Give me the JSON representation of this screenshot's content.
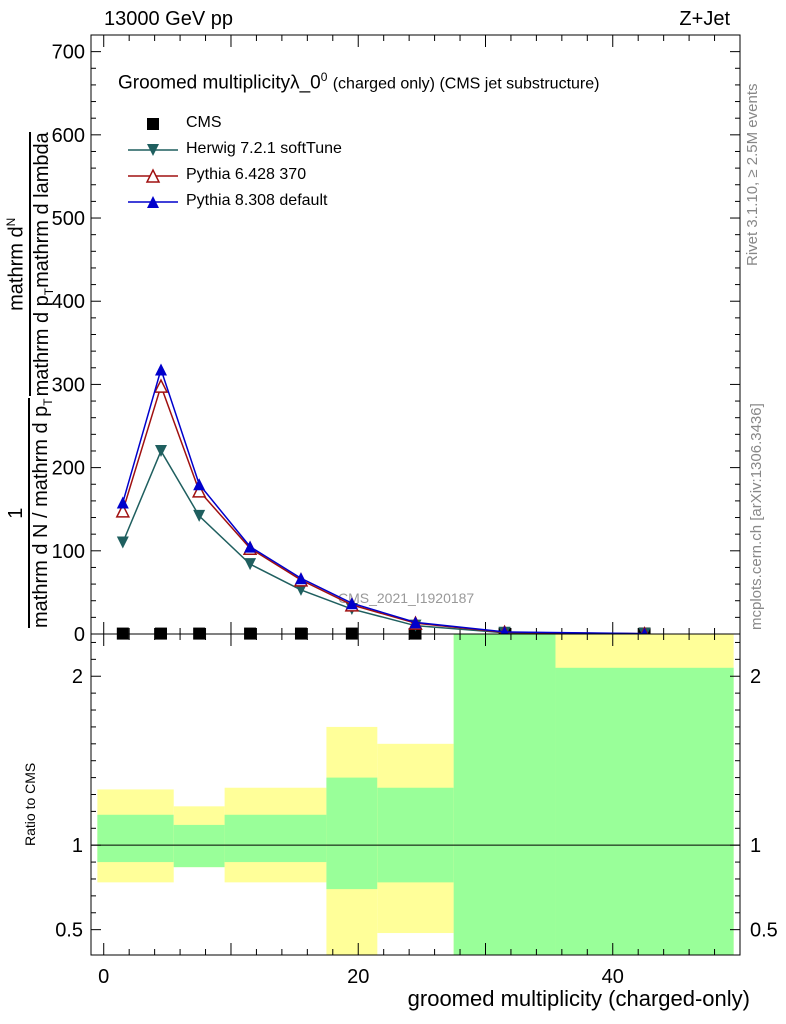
{
  "header": {
    "left": "13000 GeV pp",
    "right": "Z+Jet"
  },
  "title": {
    "main": "Groomed multiplicity",
    "lambda": "λ_0",
    "sup": "0",
    "suffix": "(charged only) (CMS jet substructure)"
  },
  "side_text": {
    "rivet": "Rivet 3.1.10, ≥ 2.5M events",
    "mcplots": "mcplots.cern.ch [arXiv:1306.3436]"
  },
  "watermark": "CMS_2021_I1920187",
  "ylabel_top": {
    "numerator_1": "1",
    "denominator_1": "mathrm d N / mathrm d p",
    "denominator_sub": "T",
    "numerator_2": "mathrm d",
    "numerator_2b": "N",
    "denominator_2": "mathrm d p",
    "denominator_2_sub": "T",
    "denominator_2b": "mathrm d lambda"
  },
  "ylabel_ratio": "Ratio to CMS",
  "xlabel": "groomed multiplicity (charged-only)",
  "colors": {
    "herwig": "#1f5f5f",
    "pythia6": "#a01010",
    "pythia8": "#0000cc",
    "band_inner": "#99ff99",
    "band_outer": "#ffff99"
  },
  "chart_data": [
    {
      "type": "line",
      "xlim": [
        -1,
        50
      ],
      "ylim": [
        0,
        720
      ],
      "yticks": [
        0,
        100,
        200,
        300,
        400,
        500,
        600,
        700
      ],
      "series": [
        {
          "name": "CMS",
          "marker": "square",
          "x": [
            1.5,
            4.5,
            7.5,
            11.5,
            15.5,
            19.5,
            24.5,
            31.5,
            42.5
          ],
          "y": [
            0.5,
            0.5,
            0.5,
            0.5,
            0.5,
            0.5,
            0.5,
            0.5,
            0.5
          ]
        },
        {
          "name": "Herwig 7.2.1 softTune",
          "marker": "triangle-down",
          "x": [
            1.5,
            4.5,
            7.5,
            11.5,
            15.5,
            19.5,
            24.5,
            31.5,
            42.5
          ],
          "y": [
            110,
            220,
            142,
            84,
            53,
            30,
            10,
            1.5,
            0.2
          ]
        },
        {
          "name": "Pythia 6.428 370",
          "marker": "triangle-open",
          "x": [
            1.5,
            4.5,
            7.5,
            11.5,
            15.5,
            19.5,
            24.5,
            31.5,
            42.5
          ],
          "y": [
            148,
            298,
            172,
            103,
            65,
            35,
            13,
            2,
            0.3
          ]
        },
        {
          "name": "Pythia 8.308 default",
          "marker": "triangle-up",
          "x": [
            1.5,
            4.5,
            7.5,
            11.5,
            15.5,
            19.5,
            24.5,
            31.5,
            42.5
          ],
          "y": [
            158,
            318,
            180,
            105,
            67,
            37,
            14,
            2.5,
            0.4
          ]
        }
      ]
    },
    {
      "type": "area",
      "xlim": [
        -1,
        50
      ],
      "ylim": [
        0.35,
        2.25
      ],
      "yticks": [
        0.5,
        1,
        2
      ],
      "xticks": [
        0,
        20,
        40
      ],
      "bins": [
        {
          "lo": -0.5,
          "hi": 5.5,
          "inner": [
            0.9,
            1.18
          ],
          "outer": [
            0.78,
            1.33
          ]
        },
        {
          "lo": 5.5,
          "hi": 9.5,
          "inner": [
            0.87,
            1.12
          ],
          "outer": [
            0.87,
            1.23
          ]
        },
        {
          "lo": 9.5,
          "hi": 17.5,
          "inner": [
            0.9,
            1.18
          ],
          "outer": [
            0.78,
            1.34
          ]
        },
        {
          "lo": 17.5,
          "hi": 21.5,
          "inner": [
            0.74,
            1.4
          ],
          "outer": [
            0.35,
            1.7
          ]
        },
        {
          "lo": 21.5,
          "hi": 27.5,
          "inner": [
            0.78,
            1.34
          ],
          "outer": [
            0.48,
            1.6
          ]
        },
        {
          "lo": 27.5,
          "hi": 35.5,
          "inner": [
            0.35,
            2.25
          ],
          "outer": [
            0.35,
            2.25
          ]
        },
        {
          "lo": 35.5,
          "hi": 49.5,
          "inner": [
            0.35,
            2.05
          ],
          "outer": [
            0.35,
            2.25
          ]
        }
      ]
    }
  ]
}
